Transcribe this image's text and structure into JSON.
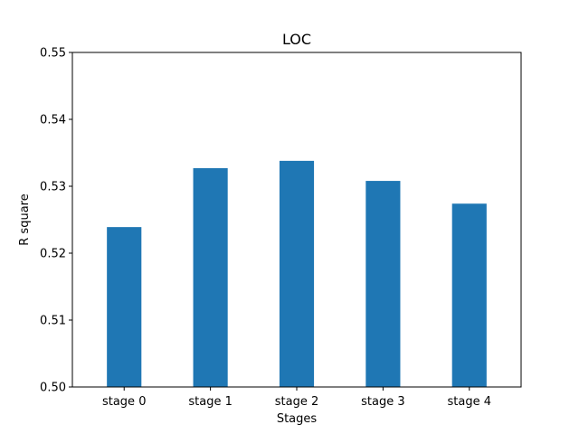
{
  "chart_data": {
    "type": "bar",
    "title": "LOC",
    "xlabel": "Stages",
    "ylabel": "R square",
    "categories": [
      "stage 0",
      "stage 1",
      "stage 2",
      "stage 3",
      "stage 4"
    ],
    "values": [
      0.5239,
      0.5327,
      0.5338,
      0.5308,
      0.5274
    ],
    "ylim": [
      0.5,
      0.55
    ],
    "yticks": [
      "0.50",
      "0.51",
      "0.52",
      "0.53",
      "0.54",
      "0.55"
    ],
    "bar_color": "#1f77b4",
    "grid": false
  }
}
